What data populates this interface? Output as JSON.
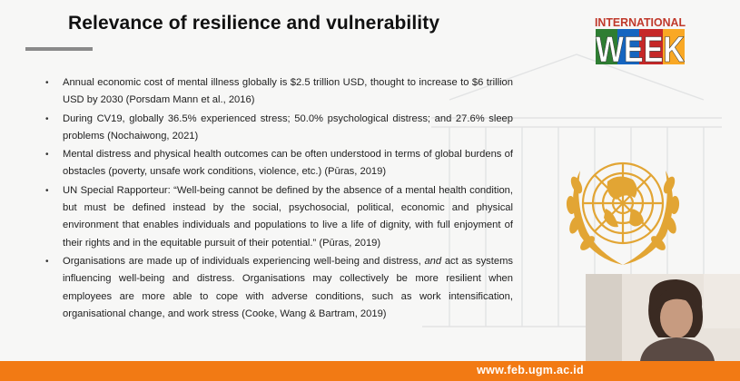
{
  "slide": {
    "title": "Relevance of resilience and vulnerability",
    "bullets": [
      "Annual economic cost of mental illness globally is $2.5 trillion USD, thought to increase to $6 trillion USD by 2030 (Porsdam Mann et al., 2016)",
      "During CV19, globally 36.5% experienced stress; 50.0% psychological distress; and 27.6% sleep problems (Nochaiwong, 2021)",
      "Mental distress and physical health outcomes can be often understood in terms of global burdens of obstacles (poverty, unsafe work conditions, violence, etc.) (Pūras, 2019)",
      "UN Special Rapporteur: “Well-being cannot be defined by the absence of a mental health condition, but must be defined instead by the social, psychosocial, political, economic and physical environment that enables individuals and populations to live a life of dignity, with full enjoyment of their rights and in the equitable pursuit of their potential.” (Pūras, 2019)"
    ],
    "last_bullet": {
      "before": "Organisations are made up of individuals experiencing well-being and distress, ",
      "emphasis": "and",
      "after": " act as systems influencing well-being and distress. Organisations may collectively be more resilient when employees are more able to cope with adverse conditions, such as work intensification, organisational change, and work stress (Cooke, Wang & Bartram, 2019)"
    }
  },
  "logo": {
    "line1": "INTERNATIONAL",
    "line2": "WEEK"
  },
  "footer": {
    "url": "www.feb.ugm.ac.id"
  },
  "colors": {
    "accent_orange": "#f27a14",
    "un_gold": "#e2a534",
    "title_rule": "#8a8a8a"
  },
  "icons": {
    "emblem": "un-emblem",
    "video": "webcam-feed"
  }
}
